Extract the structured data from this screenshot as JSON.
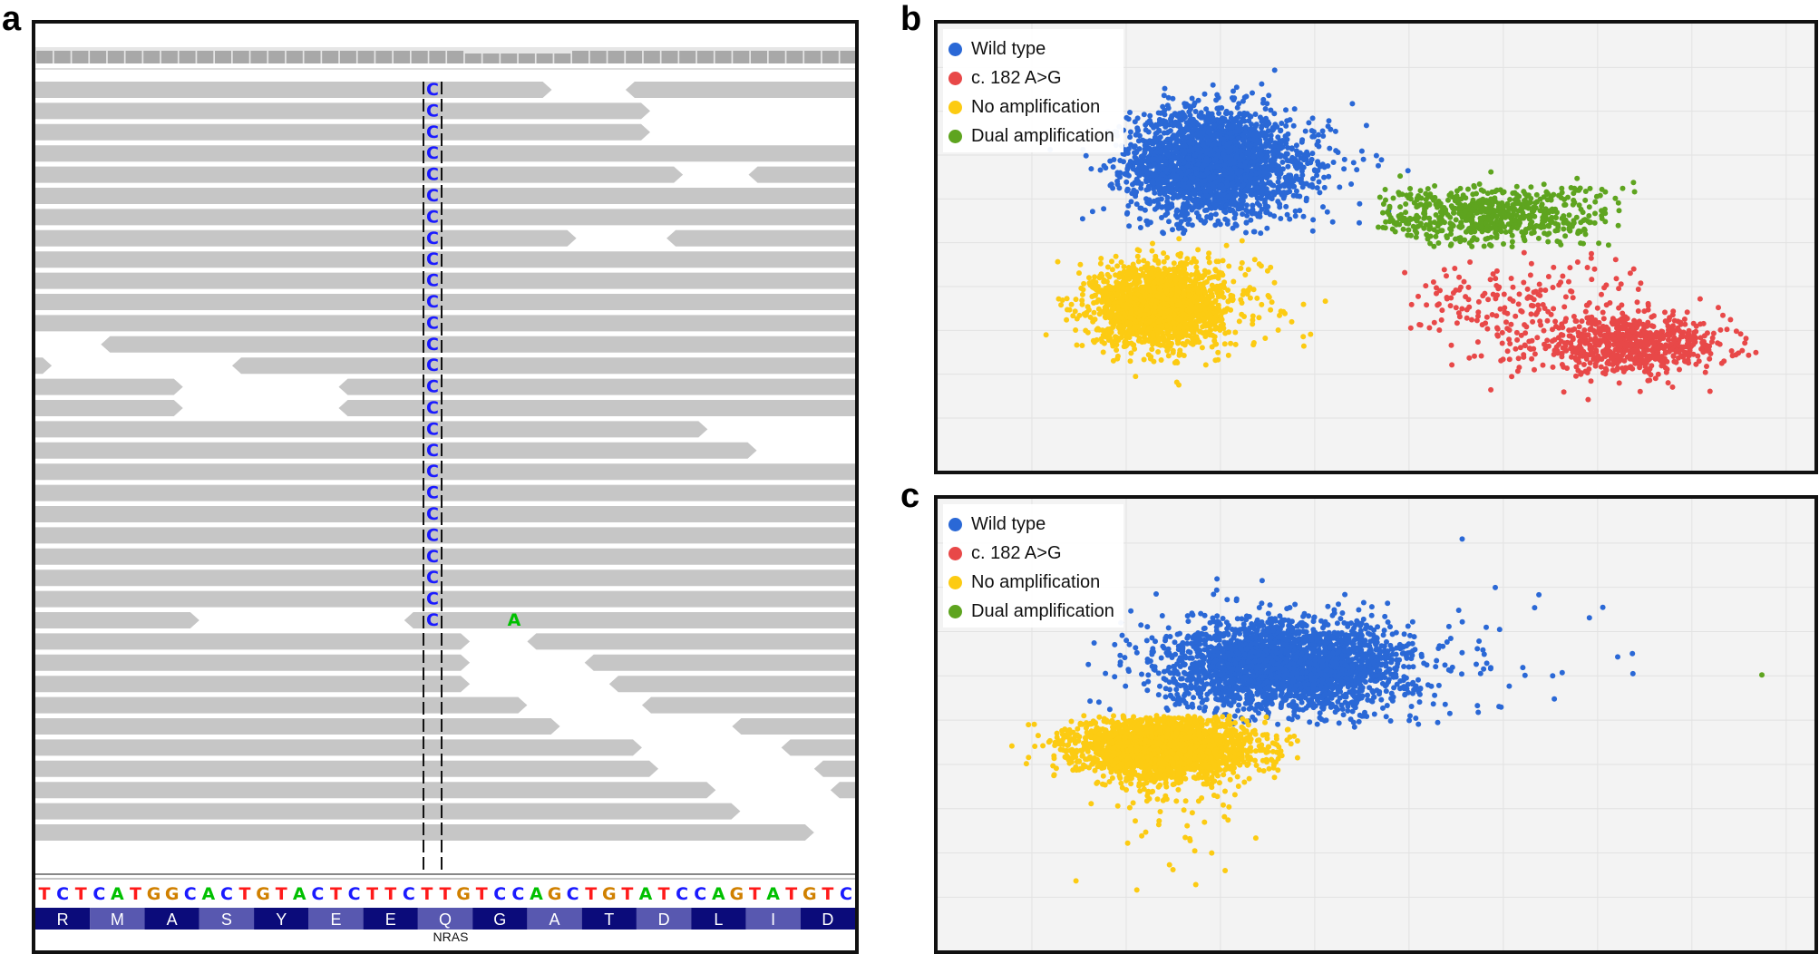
{
  "figure": {
    "panels": [
      {
        "id": "a",
        "letter": "a",
        "kind": "read-alignment-view"
      },
      {
        "id": "b",
        "letter": "b",
        "kind": "scatter"
      },
      {
        "id": "c",
        "letter": "c",
        "kind": "scatter"
      }
    ]
  },
  "panel_a": {
    "reference_sequence": "TCTCATGGCACTGTACTCTTCTTGTCCAGCTGTATCCAGTATGTC",
    "amino_acids": [
      "R",
      "M",
      "A",
      "S",
      "Y",
      "E",
      "E",
      "Q",
      "G",
      "A",
      "T",
      "D",
      "L",
      "I",
      "D"
    ],
    "gene_label": "NRAS",
    "variant_base": "C",
    "variant_read_count": 26,
    "second_mismatch_base": "A",
    "base_colors": {
      "A": "#00c000",
      "C": "#1a1aff",
      "G": "#d08000",
      "T": "#ff1a1a"
    },
    "read_color": "#c6c6c6",
    "aa_colors": [
      "#0b0b7a",
      "#5858b0"
    ]
  },
  "chart_data": [
    {
      "panel": "b",
      "type": "scatter",
      "title": "",
      "xlabel": "",
      "ylabel": "",
      "grid": true,
      "legend_position": "top-left",
      "xlim": [
        0,
        1
      ],
      "ylim": [
        0,
        1
      ],
      "series": [
        {
          "name": "Wild type",
          "color": "#2a68d6",
          "clusters": [
            {
              "cx": 0.31,
              "cy": 0.69,
              "sx": 0.045,
              "sy": 0.06,
              "n": 2400
            },
            {
              "cx": 0.4,
              "cy": 0.66,
              "sx": 0.045,
              "sy": 0.06,
              "n": 180
            }
          ]
        },
        {
          "name": "c. 182 A>G",
          "color": "#e84848",
          "clusters": [
            {
              "cx": 0.79,
              "cy": 0.28,
              "sx": 0.055,
              "sy": 0.03,
              "n": 700
            },
            {
              "cx": 0.66,
              "cy": 0.37,
              "sx": 0.08,
              "sy": 0.06,
              "n": 220
            }
          ]
        },
        {
          "name": "No amplification",
          "color": "#fccb12",
          "clusters": [
            {
              "cx": 0.25,
              "cy": 0.37,
              "sx": 0.035,
              "sy": 0.045,
              "n": 1800
            },
            {
              "cx": 0.31,
              "cy": 0.38,
              "sx": 0.05,
              "sy": 0.06,
              "n": 150
            }
          ]
        },
        {
          "name": "Dual amplification",
          "color": "#5ea41f",
          "clusters": [
            {
              "cx": 0.63,
              "cy": 0.57,
              "sx": 0.07,
              "sy": 0.035,
              "n": 650
            }
          ]
        }
      ]
    },
    {
      "panel": "c",
      "type": "scatter",
      "title": "",
      "xlabel": "",
      "ylabel": "",
      "grid": true,
      "legend_position": "top-left",
      "xlim": [
        0,
        1
      ],
      "ylim": [
        0,
        1
      ],
      "series": [
        {
          "name": "Wild type",
          "color": "#2a68d6",
          "clusters": [
            {
              "cx": 0.4,
              "cy": 0.63,
              "sx": 0.07,
              "sy": 0.05,
              "n": 2600
            },
            {
              "cx": 0.6,
              "cy": 0.66,
              "sx": 0.12,
              "sy": 0.08,
              "n": 40
            }
          ]
        },
        {
          "name": "c. 182 A>G",
          "color": "#e84848",
          "clusters": []
        },
        {
          "name": "No amplification",
          "color": "#fccb12",
          "clusters": [
            {
              "cx": 0.26,
              "cy": 0.45,
              "sx": 0.05,
              "sy": 0.035,
              "n": 2400
            },
            {
              "cx": 0.26,
              "cy": 0.32,
              "sx": 0.04,
              "sy": 0.08,
              "n": 60
            }
          ]
        },
        {
          "name": "Dual amplification",
          "color": "#5ea41f",
          "clusters": [
            {
              "cx": 0.94,
              "cy": 0.61,
              "sx": 0.0,
              "sy": 0.0,
              "n": 1
            }
          ]
        }
      ]
    }
  ]
}
